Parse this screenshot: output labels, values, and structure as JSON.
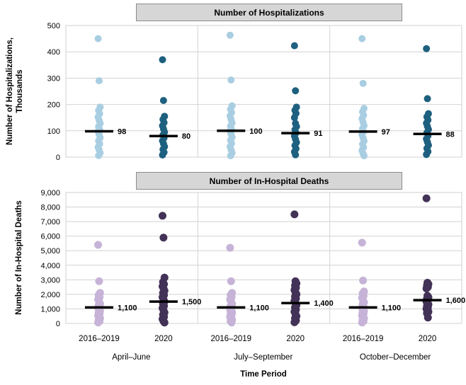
{
  "figure": {
    "x_axis": {
      "title": "Time Period",
      "group_labels": [
        "April–June",
        "July–September",
        "October–December"
      ],
      "category_labels": [
        "2016–2019",
        "2020"
      ]
    },
    "colors": {
      "hospitalizations_2016_2019": "#A9CEE2",
      "hospitalizations_2020": "#1E607F",
      "deaths_2016_2019": "#C6B3D7",
      "deaths_2020": "#433257",
      "median_line": "#000000",
      "panel_title_bg": "#D6D6D6",
      "panel_title_border": "#8C8C8C",
      "gridline": "#D2D2D2",
      "text": "#000000"
    }
  },
  "chart_data": [
    {
      "type": "scatter",
      "variant": "strip-plot-with-median",
      "title": "Number of Hospitalizations",
      "ylabel": "Number of Hospitalizations, Thousands",
      "ylim": [
        0,
        500
      ],
      "ytick_step": 100,
      "ytick_labels": [
        "0",
        "100",
        "200",
        "300",
        "400",
        "500"
      ],
      "grid": true,
      "legend": "none",
      "strips": [
        {
          "group": "April–June",
          "category": "2016–2019",
          "color": "#A9CEE2",
          "median": 98,
          "median_label": "98",
          "values": [
            450,
            290,
            190,
            177,
            165,
            152,
            140,
            128,
            116,
            105,
            98,
            86,
            74,
            62,
            50,
            38,
            27,
            16,
            6
          ]
        },
        {
          "group": "April–June",
          "category": "2020",
          "color": "#1E607F",
          "median": 80,
          "median_label": "80",
          "values": [
            370,
            215,
            155,
            143,
            131,
            119,
            107,
            95,
            84,
            73,
            62,
            51,
            40,
            29,
            18,
            8
          ]
        },
        {
          "group": "July–September",
          "category": "2016–2019",
          "color": "#A9CEE2",
          "median": 100,
          "median_label": "100",
          "values": [
            463,
            293,
            195,
            182,
            169,
            156,
            143,
            130,
            118,
            106,
            100,
            88,
            76,
            64,
            52,
            40,
            28,
            16,
            5
          ]
        },
        {
          "group": "July–September",
          "category": "2020",
          "color": "#1E607F",
          "median": 91,
          "median_label": "91",
          "values": [
            423,
            252,
            190,
            178,
            166,
            150,
            128,
            116,
            104,
            92,
            80,
            68,
            56,
            44,
            32,
            20,
            9
          ]
        },
        {
          "group": "October–December",
          "category": "2016–2019",
          "color": "#A9CEE2",
          "median": 97,
          "median_label": "97",
          "values": [
            450,
            280,
            185,
            172,
            159,
            146,
            133,
            120,
            108,
            97,
            85,
            73,
            61,
            49,
            37,
            25,
            14,
            5
          ]
        },
        {
          "group": "October–December",
          "category": "2020",
          "color": "#1E607F",
          "median": 88,
          "median_label": "88",
          "values": [
            412,
            222,
            165,
            153,
            141,
            129,
            117,
            105,
            93,
            81,
            69,
            57,
            45,
            33,
            21,
            10
          ]
        }
      ]
    },
    {
      "type": "scatter",
      "variant": "strip-plot-with-median",
      "title": "Number of In-Hospital Deaths",
      "ylabel": "Number of In-Hospital Deaths",
      "ylim": [
        0,
        9000
      ],
      "ytick_step": 1000,
      "ytick_labels": [
        "0",
        "1,000",
        "2,000",
        "3,000",
        "4,000",
        "5,000",
        "6,000",
        "7,000",
        "8,000",
        "9,000"
      ],
      "grid": true,
      "legend": "none",
      "strips": [
        {
          "group": "April–June",
          "category": "2016–2019",
          "color": "#C6B3D7",
          "median": 1100,
          "median_label": "1,100",
          "values": [
            5400,
            2900,
            2100,
            1950,
            1800,
            1650,
            1500,
            1350,
            1250,
            1150,
            1050,
            950,
            850,
            750,
            650,
            550,
            450,
            350,
            250,
            150,
            60
          ]
        },
        {
          "group": "April–June",
          "category": "2020",
          "color": "#433257",
          "median": 1500,
          "median_label": "1,500",
          "values": [
            7400,
            5900,
            3150,
            2850,
            2700,
            2550,
            2400,
            2250,
            2100,
            1950,
            1800,
            1650,
            1500,
            1350,
            1200,
            1050,
            900,
            750,
            600,
            450,
            300,
            150,
            60
          ]
        },
        {
          "group": "July–September",
          "category": "2016–2019",
          "color": "#C6B3D7",
          "median": 1100,
          "median_label": "1,100",
          "values": [
            5200,
            2900,
            2100,
            1950,
            1800,
            1650,
            1500,
            1350,
            1200,
            1050,
            950,
            850,
            750,
            650,
            550,
            450,
            350,
            250,
            150,
            60
          ]
        },
        {
          "group": "July–September",
          "category": "2020",
          "color": "#433257",
          "median": 1400,
          "median_label": "1,400",
          "values": [
            7500,
            2900,
            2750,
            2600,
            2450,
            2300,
            2150,
            2000,
            1850,
            1700,
            1550,
            1400,
            1250,
            1100,
            950,
            800,
            650,
            500,
            350,
            200,
            80
          ]
        },
        {
          "group": "October–December",
          "category": "2016–2019",
          "color": "#C6B3D7",
          "median": 1100,
          "median_label": "1,100",
          "values": [
            5550,
            2950,
            2200,
            2050,
            1900,
            1750,
            1600,
            1450,
            1300,
            1150,
            1050,
            950,
            850,
            750,
            650,
            550,
            450,
            350,
            250,
            150,
            60
          ]
        },
        {
          "group": "October–December",
          "category": "2020",
          "color": "#433257",
          "median": 1600,
          "median_label": "1,600",
          "values": [
            8600,
            2800,
            2700,
            2600,
            2500,
            2400,
            1900,
            1800,
            1700,
            1600,
            1500,
            1400,
            1300,
            1200,
            1100,
            1000,
            900,
            800,
            700,
            400
          ]
        }
      ]
    }
  ]
}
